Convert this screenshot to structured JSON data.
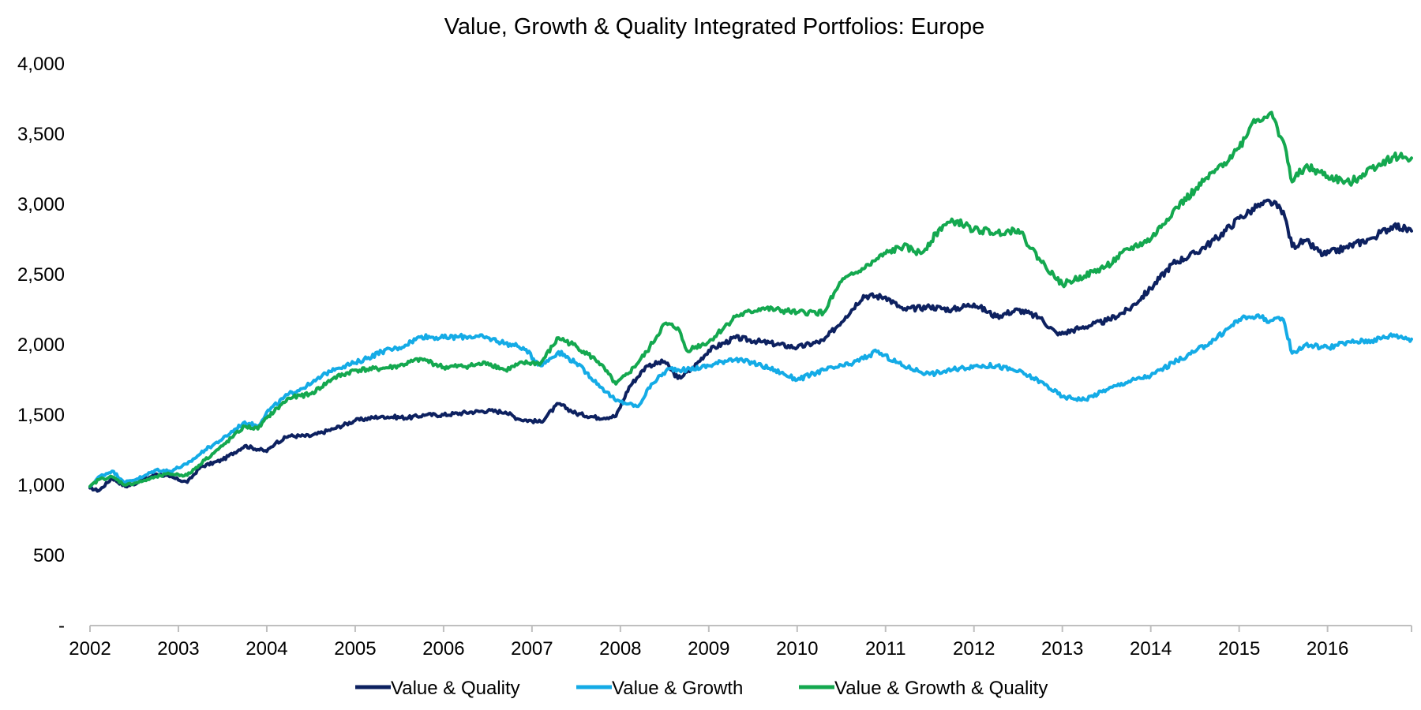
{
  "chart_data": {
    "type": "line",
    "title": "Value, Growth & Quality Integrated Portfolios: Europe",
    "xlabel": "",
    "ylabel": "",
    "xlim": [
      2002.0,
      2016.95
    ],
    "ylim": [
      0,
      4000
    ],
    "x_ticks": [
      2002,
      2003,
      2004,
      2005,
      2006,
      2007,
      2008,
      2009,
      2010,
      2011,
      2012,
      2013,
      2014,
      2015,
      2016
    ],
    "x_tick_labels": [
      "2002",
      "2003",
      "2004",
      "2005",
      "2006",
      "2007",
      "2008",
      "2009",
      "2010",
      "2011",
      "2012",
      "2013",
      "2014",
      "2015",
      "2016"
    ],
    "y_ticks": [
      0,
      500,
      1000,
      1500,
      2000,
      2500,
      3000,
      3500,
      4000
    ],
    "y_tick_labels": [
      "-",
      "500",
      "1,000",
      "1,500",
      "2,000",
      "2,500",
      "3,000",
      "3,500",
      "4,000"
    ],
    "grid": false,
    "legend_position": "bottom",
    "series": [
      {
        "name": "Value & Quality",
        "color": "#0d2160",
        "x": [
          2002.0,
          2002.1,
          2002.25,
          2002.4,
          2002.55,
          2002.75,
          2002.9,
          2003.1,
          2003.25,
          2003.5,
          2003.75,
          2004.0,
          2004.1,
          2004.25,
          2004.5,
          2004.75,
          2005.0,
          2005.3,
          2005.6,
          2005.8,
          2006.0,
          2006.3,
          2006.5,
          2006.7,
          2006.85,
          2007.1,
          2007.3,
          2007.5,
          2007.75,
          2007.95,
          2008.1,
          2008.3,
          2008.5,
          2008.65,
          2008.8,
          2009.0,
          2009.3,
          2009.6,
          2010.0,
          2010.3,
          2010.55,
          2010.75,
          2011.0,
          2011.2,
          2011.5,
          2011.75,
          2012.0,
          2012.25,
          2012.5,
          2012.75,
          2012.95,
          2013.2,
          2013.5,
          2013.75,
          2014.0,
          2014.25,
          2014.5,
          2014.75,
          2015.0,
          2015.2,
          2015.35,
          2015.5,
          2015.6,
          2015.75,
          2015.95,
          2016.2,
          2016.5,
          2016.75,
          2016.95
        ],
        "y": [
          980,
          960,
          1050,
          990,
          1020,
          1080,
          1060,
          1020,
          1130,
          1180,
          1280,
          1240,
          1300,
          1350,
          1350,
          1400,
          1460,
          1490,
          1480,
          1500,
          1500,
          1520,
          1530,
          1520,
          1470,
          1450,
          1580,
          1510,
          1480,
          1490,
          1700,
          1850,
          1880,
          1760,
          1820,
          1960,
          2050,
          2020,
          1980,
          2030,
          2200,
          2350,
          2340,
          2250,
          2270,
          2250,
          2290,
          2200,
          2250,
          2190,
          2070,
          2120,
          2170,
          2250,
          2400,
          2580,
          2650,
          2760,
          2900,
          2980,
          3020,
          2950,
          2700,
          2740,
          2640,
          2690,
          2760,
          2850,
          2810
        ]
      },
      {
        "name": "Value & Growth",
        "color": "#14abe6",
        "x": [
          2002.0,
          2002.1,
          2002.25,
          2002.4,
          2002.6,
          2002.75,
          2002.9,
          2003.1,
          2003.3,
          2003.5,
          2003.75,
          2003.9,
          2004.0,
          2004.25,
          2004.5,
          2004.75,
          2005.0,
          2005.3,
          2005.5,
          2005.75,
          2006.0,
          2006.3,
          2006.5,
          2006.7,
          2006.9,
          2007.1,
          2007.3,
          2007.5,
          2007.75,
          2007.95,
          2008.1,
          2008.2,
          2008.35,
          2008.55,
          2008.75,
          2009.0,
          2009.25,
          2009.5,
          2009.75,
          2010.0,
          2010.3,
          2010.6,
          2010.9,
          2011.2,
          2011.5,
          2011.75,
          2012.0,
          2012.25,
          2012.5,
          2012.75,
          2013.0,
          2013.25,
          2013.5,
          2013.75,
          2014.0,
          2014.25,
          2014.5,
          2014.75,
          2015.0,
          2015.2,
          2015.35,
          2015.5,
          2015.6,
          2015.75,
          2016.0,
          2016.25,
          2016.5,
          2016.75,
          2016.95
        ],
        "y": [
          990,
          1060,
          1100,
          1020,
          1060,
          1110,
          1100,
          1150,
          1250,
          1330,
          1450,
          1420,
          1520,
          1650,
          1720,
          1830,
          1870,
          1950,
          1980,
          2060,
          2050,
          2060,
          2050,
          2010,
          1980,
          1850,
          1950,
          1870,
          1720,
          1600,
          1580,
          1560,
          1720,
          1830,
          1820,
          1850,
          1900,
          1870,
          1820,
          1750,
          1820,
          1860,
          1950,
          1850,
          1790,
          1820,
          1850,
          1850,
          1810,
          1740,
          1630,
          1610,
          1680,
          1740,
          1780,
          1870,
          1950,
          2050,
          2180,
          2210,
          2170,
          2180,
          1940,
          2000,
          1980,
          2020,
          2030,
          2070,
          2040
        ]
      },
      {
        "name": "Value & Growth & Quality",
        "color": "#14a84f",
        "x": [
          2002.0,
          2002.1,
          2002.25,
          2002.4,
          2002.6,
          2002.75,
          2002.9,
          2003.1,
          2003.3,
          2003.5,
          2003.75,
          2003.9,
          2004.0,
          2004.25,
          2004.5,
          2004.75,
          2005.0,
          2005.3,
          2005.5,
          2005.75,
          2006.0,
          2006.3,
          2006.5,
          2006.7,
          2006.9,
          2007.1,
          2007.3,
          2007.5,
          2007.75,
          2007.95,
          2008.1,
          2008.3,
          2008.5,
          2008.65,
          2008.75,
          2009.0,
          2009.3,
          2009.6,
          2010.0,
          2010.3,
          2010.5,
          2010.75,
          2011.0,
          2011.2,
          2011.4,
          2011.65,
          2011.8,
          2012.0,
          2012.25,
          2012.5,
          2012.75,
          2012.9,
          2013.0,
          2013.25,
          2013.5,
          2013.75,
          2014.0,
          2014.25,
          2014.5,
          2014.75,
          2015.0,
          2015.15,
          2015.35,
          2015.5,
          2015.6,
          2015.75,
          2016.0,
          2016.25,
          2016.5,
          2016.75,
          2016.95
        ],
        "y": [
          990,
          1040,
          1060,
          1000,
          1030,
          1060,
          1080,
          1070,
          1180,
          1280,
          1420,
          1400,
          1480,
          1620,
          1650,
          1760,
          1820,
          1830,
          1850,
          1900,
          1840,
          1850,
          1870,
          1820,
          1870,
          1870,
          2050,
          1990,
          1880,
          1720,
          1800,
          1950,
          2150,
          2120,
          1960,
          2020,
          2200,
          2260,
          2230,
          2230,
          2450,
          2540,
          2650,
          2700,
          2650,
          2850,
          2880,
          2820,
          2800,
          2820,
          2600,
          2500,
          2430,
          2490,
          2560,
          2680,
          2750,
          2950,
          3100,
          3250,
          3400,
          3580,
          3650,
          3450,
          3160,
          3270,
          3200,
          3150,
          3260,
          3340,
          3330
        ]
      }
    ]
  }
}
